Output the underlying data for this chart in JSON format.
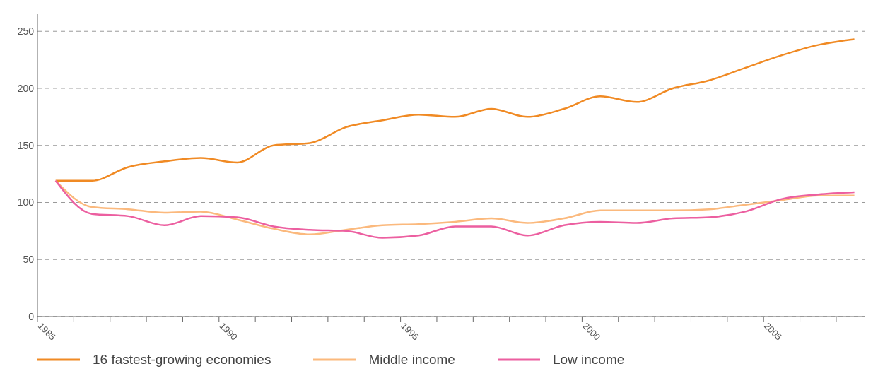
{
  "chart_data": {
    "type": "line",
    "x": [
      1985.5,
      1986.5,
      1987.5,
      1988.5,
      1989.5,
      1990.5,
      1991.5,
      1992.5,
      1993.5,
      1994.5,
      1995.5,
      1996.5,
      1997.5,
      1998.5,
      1999.5,
      2000.5,
      2001.5,
      2002.5,
      2003.5,
      2004.5,
      2005.5,
      2006.5,
      2007.5
    ],
    "series": [
      {
        "name": "16 fastest-growing economies",
        "color": "#f08a24",
        "values": [
          119,
          119,
          131,
          136,
          139,
          135,
          150,
          152,
          166,
          172,
          177,
          175,
          182,
          175,
          182,
          193,
          188,
          200,
          207,
          218,
          229,
          238,
          243
        ]
      },
      {
        "name": "Middle income",
        "color": "#fbb97d",
        "values": [
          119,
          96,
          94,
          91,
          92,
          85,
          77,
          72,
          76,
          80,
          81,
          83,
          86,
          82,
          86,
          93,
          93,
          93,
          94,
          98,
          102,
          106,
          106
        ]
      },
      {
        "name": "Low income",
        "color": "#ec5fa0",
        "values": [
          119,
          90,
          88,
          80,
          88,
          87,
          79,
          76,
          75,
          69,
          71,
          79,
          79,
          71,
          80,
          83,
          82,
          86,
          87,
          92,
          103,
          107,
          109
        ]
      }
    ],
    "xlim": [
      1985,
      2007.8
    ],
    "xticks": [
      1985,
      {
        "value": 1986,
        "label": null
      },
      {
        "value": 1987,
        "label": null
      },
      {
        "value": 1988,
        "label": null
      },
      {
        "value": 1989,
        "label": null
      },
      1990,
      {
        "value": 1991,
        "label": null
      },
      {
        "value": 1992,
        "label": null
      },
      {
        "value": 1993,
        "label": null
      },
      {
        "value": 1994,
        "label": null
      },
      1995,
      {
        "value": 1996,
        "label": null
      },
      {
        "value": 1997,
        "label": null
      },
      {
        "value": 1998,
        "label": null
      },
      {
        "value": 1999,
        "label": null
      },
      2000,
      {
        "value": 2001,
        "label": null
      },
      {
        "value": 2002,
        "label": null
      },
      {
        "value": 2003,
        "label": null
      },
      {
        "value": 2004,
        "label": null
      },
      2005,
      {
        "value": 2006,
        "label": null
      },
      {
        "value": 2007,
        "label": null
      }
    ],
    "ylim": [
      0,
      265
    ],
    "yticks": [
      0,
      50,
      100,
      150,
      200,
      250
    ],
    "grid": "y",
    "legend": "bottom left",
    "marker": "none",
    "line_style": "solid"
  }
}
